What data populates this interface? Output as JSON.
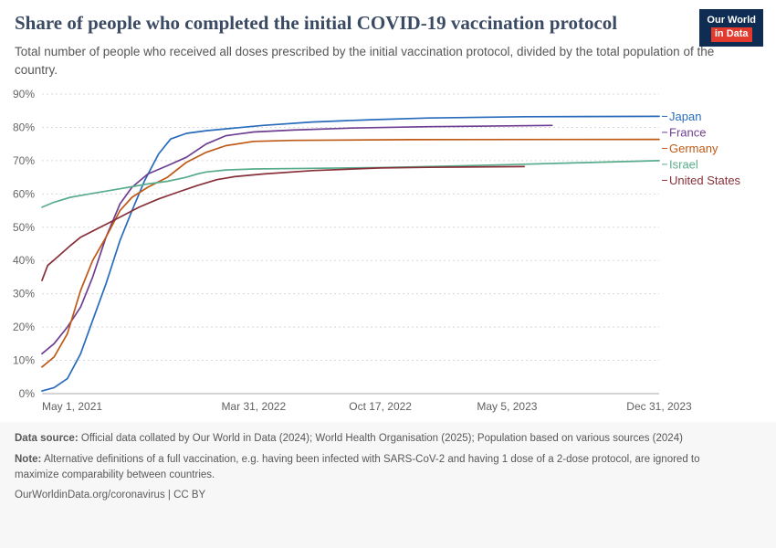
{
  "header": {
    "title": "Share of people who completed the initial COVID-19 vaccination protocol",
    "subtitle": "Total number of people who received all doses prescribed by the initial vaccination protocol, divided by the total population of the country.",
    "logo": {
      "line1": "Our World",
      "line2": "in Data",
      "bg_color": "#0f2d52",
      "accent_color": "#e23b2e"
    }
  },
  "chart_data": {
    "type": "line",
    "title": "Share of people who completed the initial COVID-19 vaccination protocol",
    "grid": true,
    "legend_position": "right",
    "x_axis": {
      "min_date": "2021-05-01",
      "max_date": "2023-12-31",
      "ticks": [
        {
          "date": "2021-05-01",
          "label": "May 1, 2021"
        },
        {
          "date": "2022-03-31",
          "label": "Mar 31, 2022"
        },
        {
          "date": "2022-10-17",
          "label": "Oct 17, 2022"
        },
        {
          "date": "2023-05-05",
          "label": "May 5, 2023"
        },
        {
          "date": "2023-12-31",
          "label": "Dec 31, 2023"
        }
      ]
    },
    "y_axis": {
      "min": 0,
      "max": 90,
      "tick_step": 10,
      "suffix": "%"
    },
    "series": [
      {
        "id": "japan",
        "name": "Japan",
        "color": "#286bbb",
        "points": [
          [
            "2021-05-01",
            0.8
          ],
          [
            "2021-05-20",
            1.8
          ],
          [
            "2021-06-10",
            4.5
          ],
          [
            "2021-07-01",
            12
          ],
          [
            "2021-07-20",
            22
          ],
          [
            "2021-08-10",
            33
          ],
          [
            "2021-09-01",
            46
          ],
          [
            "2021-09-20",
            55
          ],
          [
            "2021-10-10",
            64
          ],
          [
            "2021-11-01",
            72
          ],
          [
            "2021-11-20",
            76.5
          ],
          [
            "2021-12-15",
            78.2
          ],
          [
            "2022-01-15",
            79
          ],
          [
            "2022-03-01",
            79.8
          ],
          [
            "2022-04-15",
            80.6
          ],
          [
            "2022-07-01",
            81.6
          ],
          [
            "2022-10-01",
            82.3
          ],
          [
            "2023-01-01",
            82.8
          ],
          [
            "2023-06-01",
            83.2
          ],
          [
            "2023-12-31",
            83.3
          ]
        ]
      },
      {
        "id": "france",
        "name": "France",
        "color": "#6d3e91",
        "points": [
          [
            "2021-05-01",
            12
          ],
          [
            "2021-05-20",
            15
          ],
          [
            "2021-06-10",
            20
          ],
          [
            "2021-07-01",
            26
          ],
          [
            "2021-07-20",
            35
          ],
          [
            "2021-08-10",
            47
          ],
          [
            "2021-09-01",
            57
          ],
          [
            "2021-09-20",
            62
          ],
          [
            "2021-10-15",
            66
          ],
          [
            "2021-11-15",
            68.5
          ],
          [
            "2021-12-15",
            71
          ],
          [
            "2022-01-15",
            75
          ],
          [
            "2022-02-15",
            77.5
          ],
          [
            "2022-03-31",
            78.6
          ],
          [
            "2022-06-01",
            79.2
          ],
          [
            "2022-09-01",
            79.8
          ],
          [
            "2023-01-01",
            80.2
          ],
          [
            "2023-07-15",
            80.6
          ]
        ]
      },
      {
        "id": "germany",
        "name": "Germany",
        "color": "#be5915",
        "points": [
          [
            "2021-05-01",
            8
          ],
          [
            "2021-05-20",
            11
          ],
          [
            "2021-06-10",
            18
          ],
          [
            "2021-07-01",
            31
          ],
          [
            "2021-07-20",
            40
          ],
          [
            "2021-08-10",
            47
          ],
          [
            "2021-09-01",
            55
          ],
          [
            "2021-09-20",
            59
          ],
          [
            "2021-10-15",
            62
          ],
          [
            "2021-11-15",
            65
          ],
          [
            "2021-12-15",
            69.5
          ],
          [
            "2022-01-15",
            72.5
          ],
          [
            "2022-02-15",
            74.5
          ],
          [
            "2022-03-31",
            75.8
          ],
          [
            "2022-06-01",
            76.1
          ],
          [
            "2022-12-01",
            76.3
          ],
          [
            "2023-12-31",
            76.4
          ]
        ]
      },
      {
        "id": "israel",
        "name": "Israel",
        "color": "#58ac8c",
        "points": [
          [
            "2021-05-01",
            56
          ],
          [
            "2021-05-20",
            57.5
          ],
          [
            "2021-06-15",
            59
          ],
          [
            "2021-07-15",
            60
          ],
          [
            "2021-08-15",
            61
          ],
          [
            "2021-09-15",
            62
          ],
          [
            "2021-10-15",
            63
          ],
          [
            "2021-11-15",
            63.8
          ],
          [
            "2021-12-15",
            65
          ],
          [
            "2022-01-01",
            66
          ],
          [
            "2022-01-15",
            66.6
          ],
          [
            "2022-02-15",
            67.2
          ],
          [
            "2022-04-01",
            67.5
          ],
          [
            "2022-07-01",
            67.7
          ],
          [
            "2022-10-17",
            67.9
          ],
          [
            "2023-01-01",
            68.2
          ],
          [
            "2023-05-05",
            68.8
          ],
          [
            "2023-09-01",
            69.4
          ],
          [
            "2023-12-31",
            70
          ]
        ]
      },
      {
        "id": "united-states",
        "name": "United States",
        "color": "#883039",
        "points": [
          [
            "2021-05-01",
            34
          ],
          [
            "2021-05-10",
            38.5
          ],
          [
            "2021-05-25",
            41
          ],
          [
            "2021-06-15",
            44.5
          ],
          [
            "2021-07-01",
            47
          ],
          [
            "2021-08-01",
            50
          ],
          [
            "2021-09-01",
            53
          ],
          [
            "2021-10-01",
            56
          ],
          [
            "2021-11-01",
            58.5
          ],
          [
            "2021-12-01",
            60.5
          ],
          [
            "2022-01-01",
            62.5
          ],
          [
            "2022-02-01",
            64.3
          ],
          [
            "2022-03-01",
            65.2
          ],
          [
            "2022-04-15",
            66
          ],
          [
            "2022-07-01",
            67
          ],
          [
            "2022-10-17",
            67.8
          ],
          [
            "2023-01-01",
            68
          ],
          [
            "2023-06-01",
            68.2
          ]
        ]
      }
    ]
  },
  "footer": {
    "source_label": "Data source:",
    "source_text": "Official data collated by Our World in Data (2024); World Health Organisation (2025); Population based on various sources (2024)",
    "note_label": "Note:",
    "note_text": "Alternative definitions of a full vaccination, e.g. having been infected with SARS-CoV-2 and having 1 dose of a 2-dose protocol, are ignored to maximize comparability between countries.",
    "license_line": "OurWorldinData.org/coronavirus | CC BY"
  }
}
